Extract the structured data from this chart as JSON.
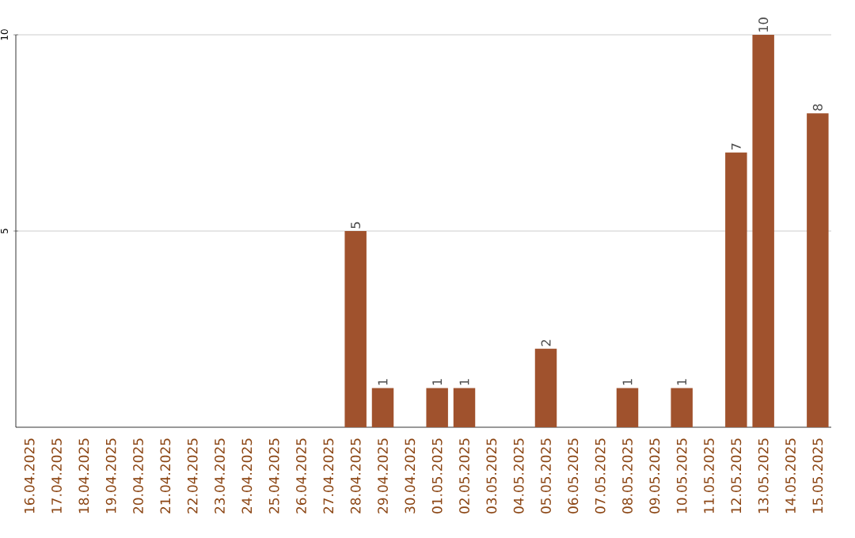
{
  "chart_data": {
    "type": "bar",
    "categories": [
      "16.04.2025",
      "17.04.2025",
      "18.04.2025",
      "19.04.2025",
      "20.04.2025",
      "21.04.2025",
      "22.04.2025",
      "23.04.2025",
      "24.04.2025",
      "25.04.2025",
      "26.04.2025",
      "27.04.2025",
      "28.04.2025",
      "29.04.2025",
      "30.04.2025",
      "01.05.2025",
      "02.05.2025",
      "03.05.2025",
      "04.05.2025",
      "05.05.2025",
      "06.05.2025",
      "07.05.2025",
      "08.05.2025",
      "09.05.2025",
      "10.05.2025",
      "11.05.2025",
      "12.05.2025",
      "13.05.2025",
      "14.05.2025",
      "15.05.2025"
    ],
    "values": [
      0,
      0,
      0,
      0,
      0,
      0,
      0,
      0,
      0,
      0,
      0,
      0,
      5,
      1,
      0,
      1,
      1,
      0,
      0,
      2,
      0,
      0,
      1,
      0,
      1,
      0,
      7,
      10,
      0,
      8
    ],
    "value_labels": [
      null,
      null,
      null,
      null,
      null,
      null,
      null,
      null,
      null,
      null,
      null,
      null,
      "5",
      "1",
      null,
      "1",
      "1",
      null,
      null,
      "2",
      null,
      null,
      "1",
      null,
      "1",
      null,
      "7",
      "10",
      null,
      "8"
    ],
    "color": "#a0522d",
    "ylim": [
      0,
      10
    ],
    "yticks": [
      5,
      10
    ],
    "grid": "y"
  }
}
